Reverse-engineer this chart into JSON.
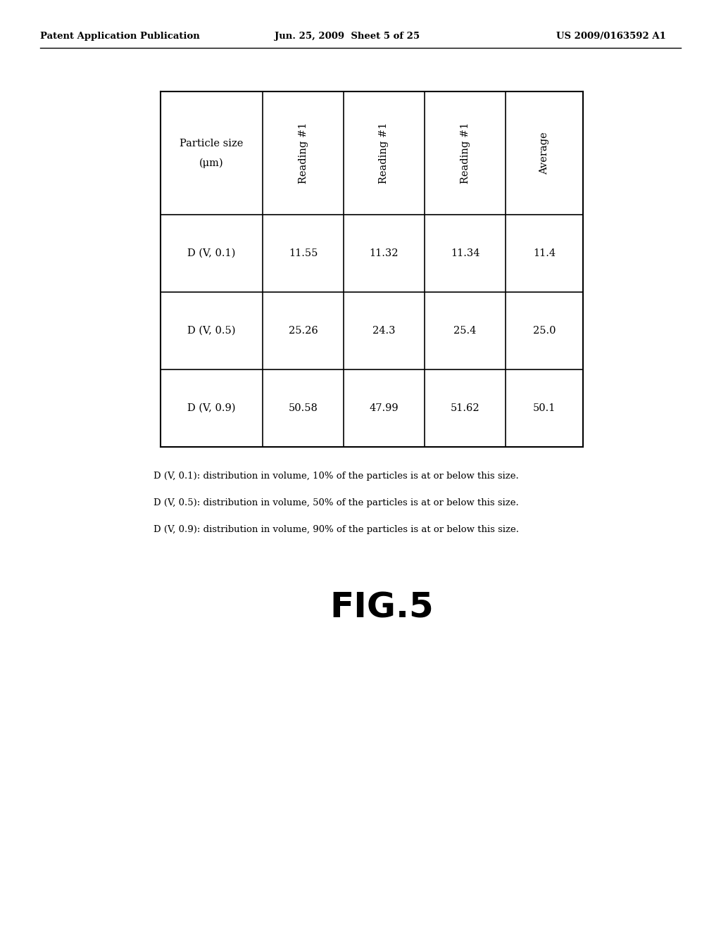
{
  "header_left": "Patent Application Publication",
  "header_mid": "Jun. 25, 2009  Sheet 5 of 25",
  "header_right": "US 2009/0163592 A1",
  "col_headers": [
    "Particle size\n(μm)",
    "Reading #1",
    "Reading #1",
    "Reading #1",
    "Average"
  ],
  "row_labels": [
    "D (V, 0.1)",
    "D (V, 0.5)",
    "D (V, 0.9)"
  ],
  "data": [
    [
      "11.55",
      "11.32",
      "11.34",
      "11.4"
    ],
    [
      "25.26",
      "24.3",
      "25.4",
      "25.0"
    ],
    [
      "50.58",
      "47.99",
      "51.62",
      "50.1"
    ]
  ],
  "footnotes": [
    "D (V, 0.1): distribution in volume, 10% of the particles is at or below this size.",
    "D (V, 0.5): distribution in volume, 50% of the particles is at or below this size.",
    "D (V, 0.9): distribution in volume, 90% of the particles is at or below this size."
  ],
  "fig_label": "FIG.5",
  "background_color": "#ffffff",
  "text_color": "#000000"
}
